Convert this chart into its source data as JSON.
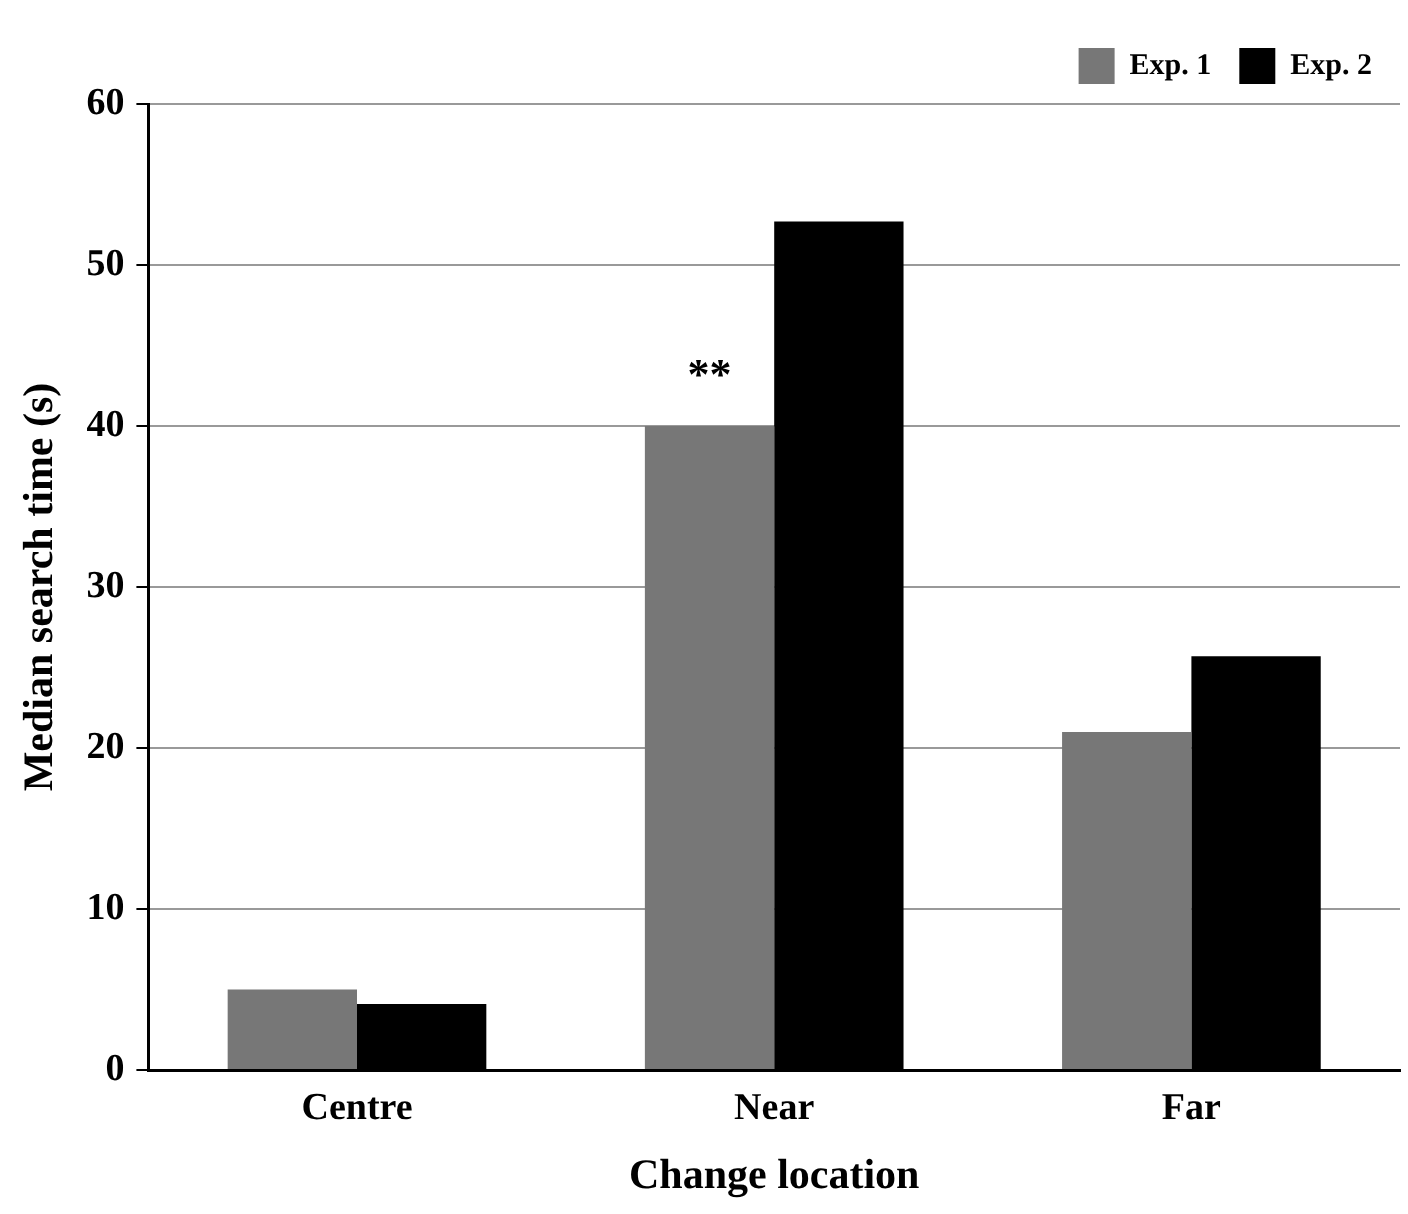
{
  "chart_data": {
    "type": "bar",
    "xlabel": "Change location",
    "ylabel": "Median search time (s)",
    "categories": [
      "Centre",
      "Near",
      "Far"
    ],
    "series": [
      {
        "name": "Exp. 1",
        "color": "#777777",
        "values": [
          5,
          40,
          21
        ]
      },
      {
        "name": "Exp. 2",
        "color": "#000000",
        "values": [
          4.1,
          52.7,
          25.7
        ]
      }
    ],
    "ylim": [
      0,
      60
    ],
    "yticks": [
      0,
      10,
      20,
      30,
      40,
      50,
      60
    ],
    "grid": "y",
    "legend": "top right",
    "annotations": [
      {
        "text": "**",
        "x": "Near",
        "y": 43
      }
    ]
  }
}
